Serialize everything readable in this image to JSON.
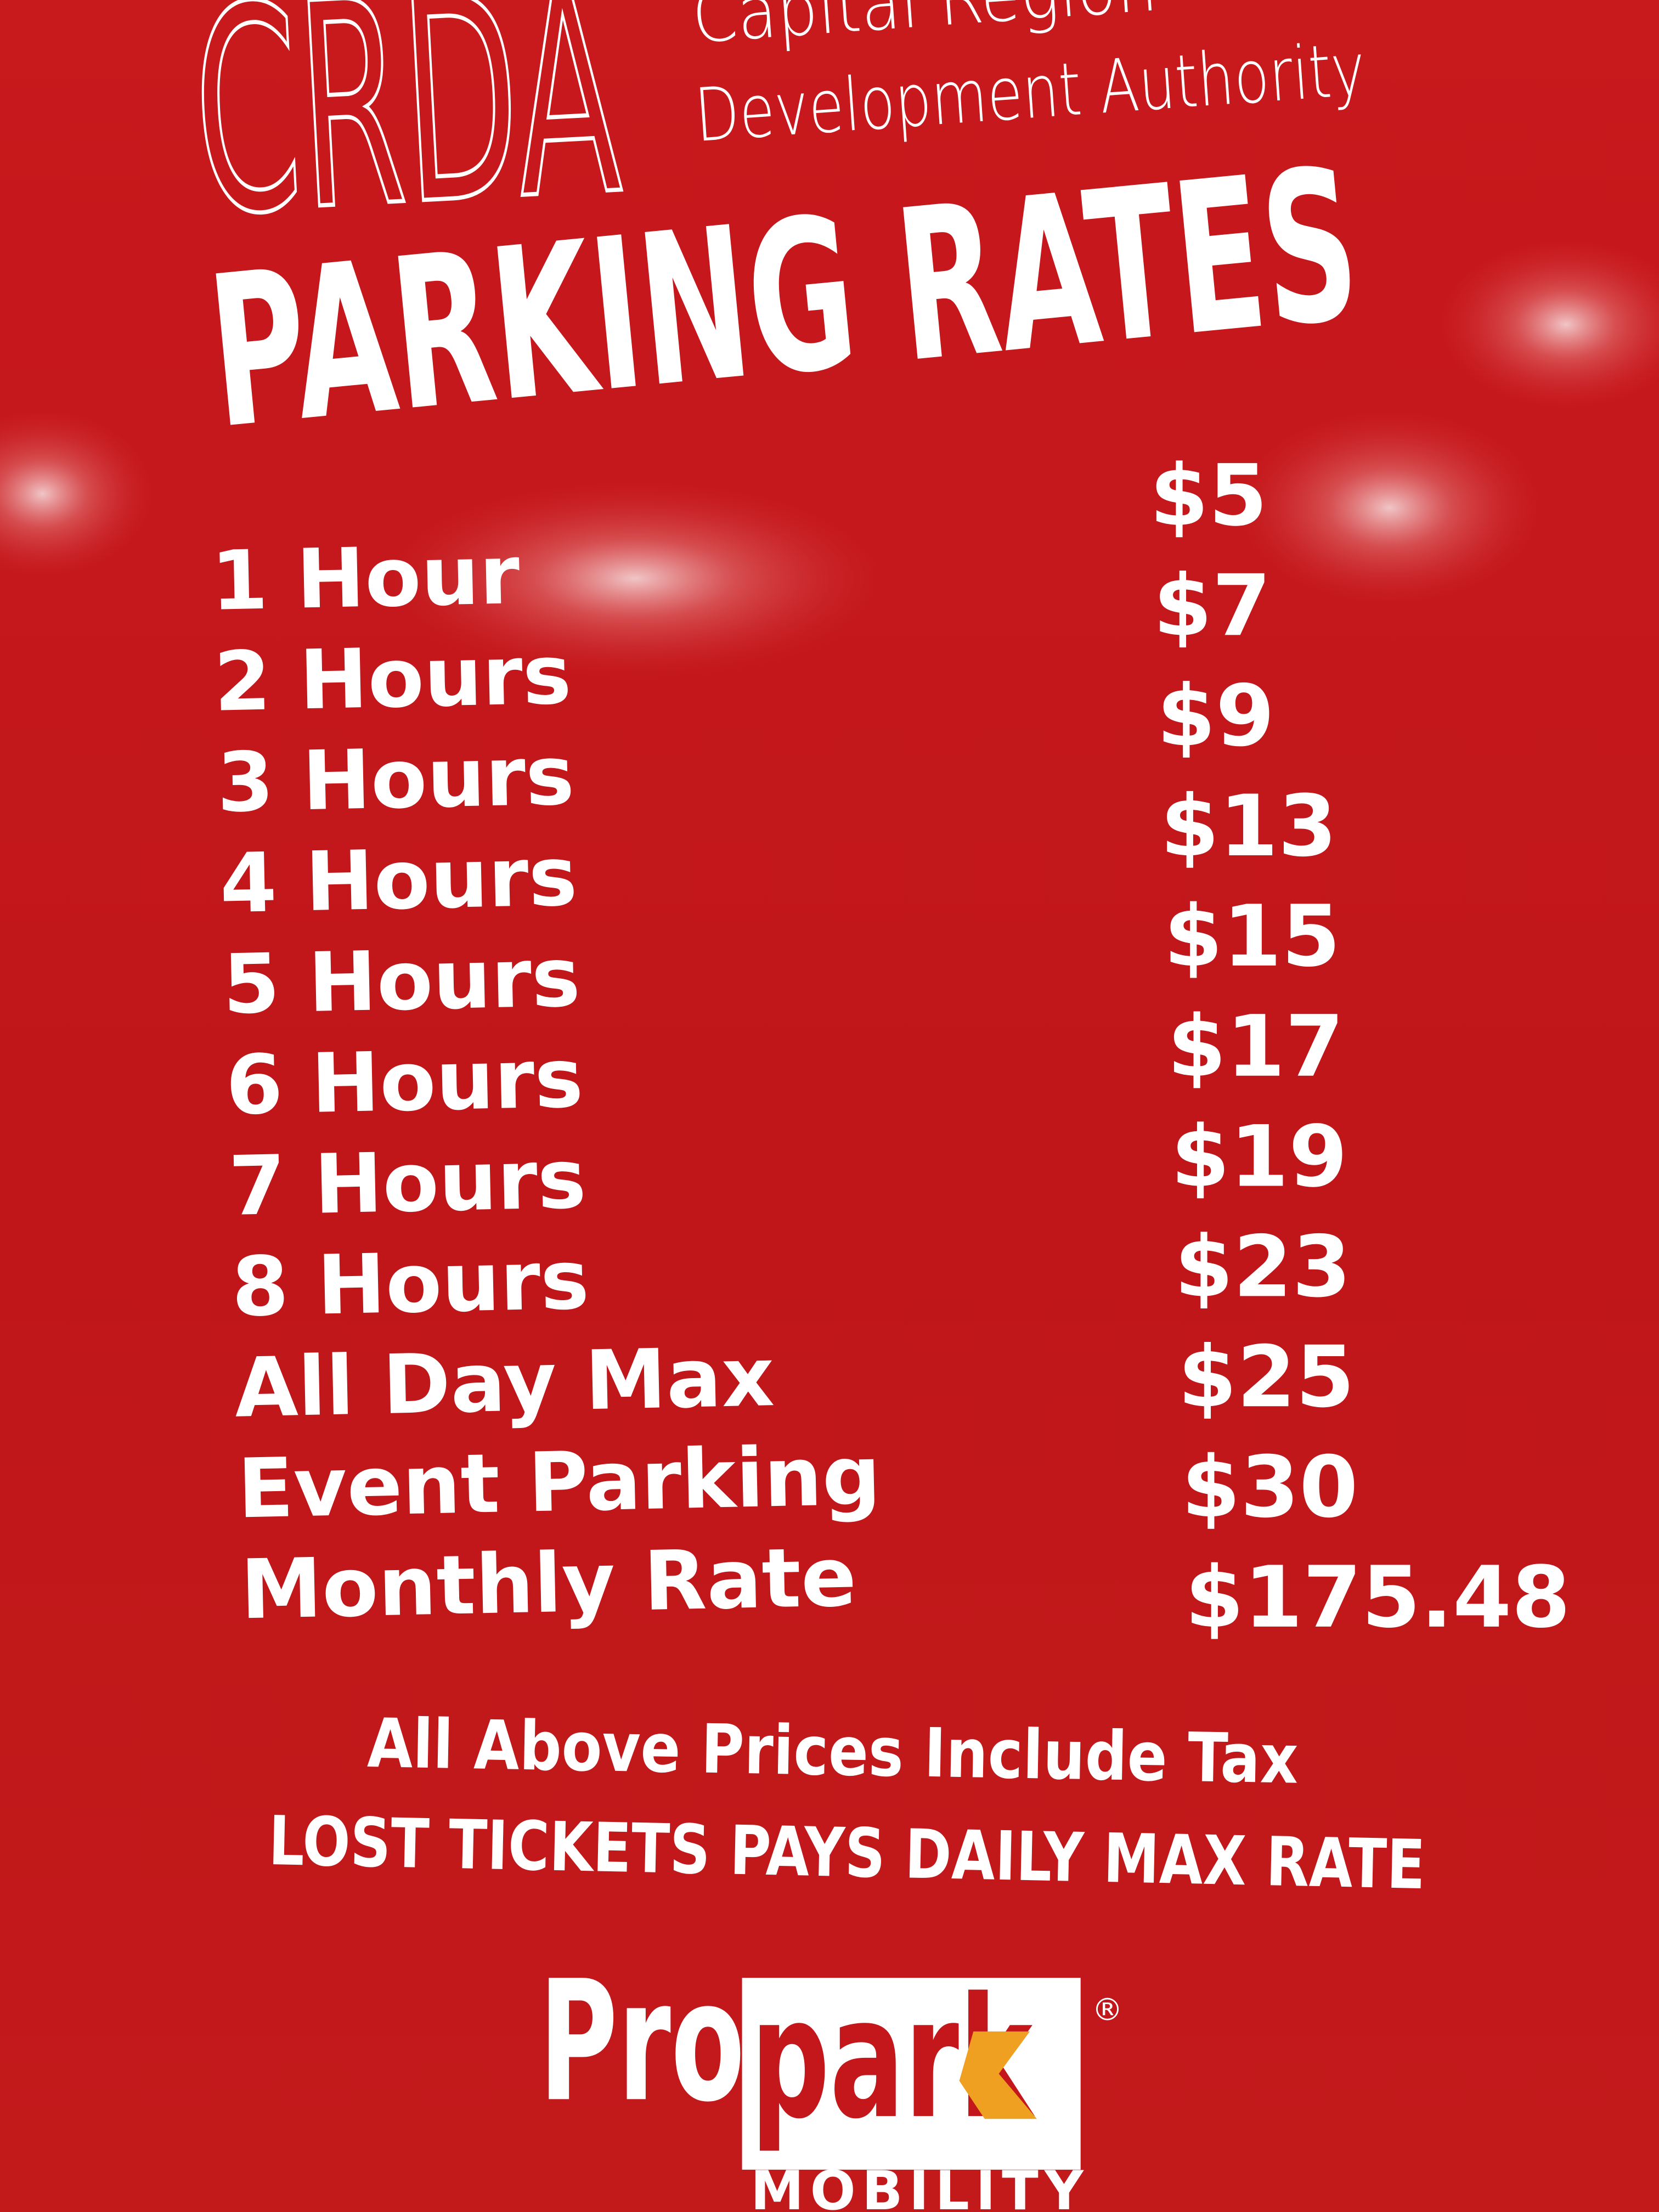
{
  "header": {
    "abbreviation": "CRDA",
    "name_lines": [
      "Capital Region",
      "Development Authority"
    ]
  },
  "title": "PARKING RATES",
  "rates": [
    {
      "label": "1 Hour",
      "price": "$5"
    },
    {
      "label": "2 Hours",
      "price": "$7"
    },
    {
      "label": "3 Hours",
      "price": "$9"
    },
    {
      "label": "4 Hours",
      "price": "$13"
    },
    {
      "label": "5 Hours",
      "price": "$15"
    },
    {
      "label": "6 Hours",
      "price": "$17"
    },
    {
      "label": "7 Hours",
      "price": "$19"
    },
    {
      "label": "8 Hours",
      "price": "$23"
    },
    {
      "label": "All Day Max",
      "price": "$25"
    },
    {
      "label": "Event Parking",
      "price": "$30"
    },
    {
      "label": "Monthly Rate",
      "price": "$175.48"
    }
  ],
  "notes": [
    "All Above Prices Include Tax",
    "LOST TICKETS PAYS DAILY MAX RATE"
  ],
  "logo": {
    "brand_1": "Pro",
    "brand_2": "park",
    "registered": "®",
    "tagline": "MOBILITY"
  }
}
